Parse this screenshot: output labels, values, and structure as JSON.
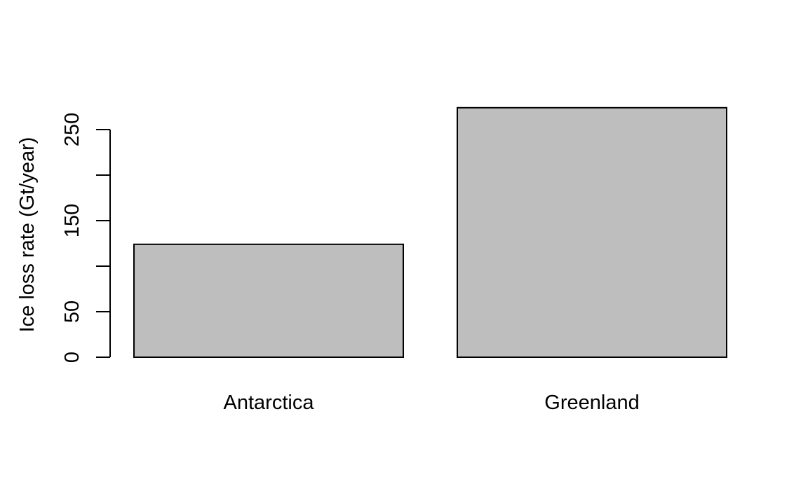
{
  "chart_data": {
    "type": "bar",
    "categories": [
      "Antarctica",
      "Greenland"
    ],
    "values": [
      124,
      274
    ],
    "title": "",
    "xlabel": "",
    "ylabel": "Ice loss rate (Gt/year)",
    "ylim": [
      0,
      250
    ],
    "y_ticks": [
      0,
      50,
      100,
      150,
      200,
      250
    ],
    "y_tick_labels": [
      "0",
      "50",
      "",
      "150",
      "",
      "250"
    ],
    "bar_fill": "#bebebe",
    "bar_stroke": "#000000",
    "grid": false,
    "legend": "none"
  }
}
